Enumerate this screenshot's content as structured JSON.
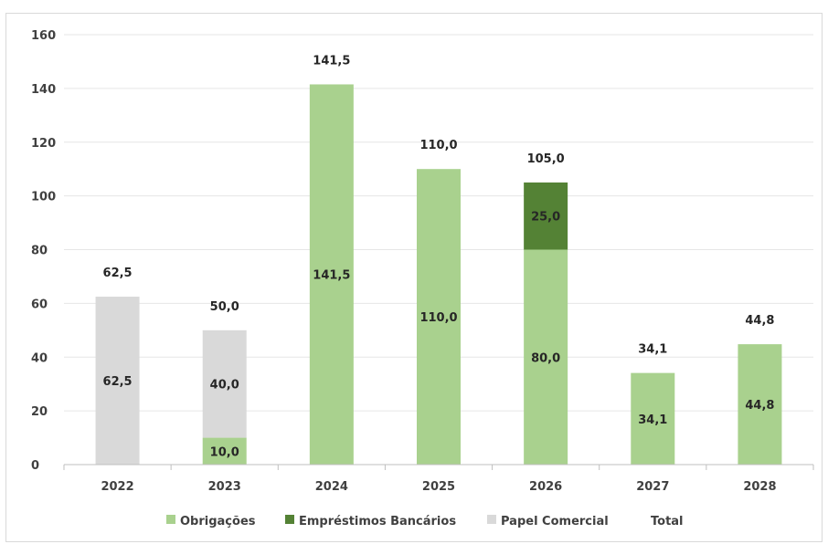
{
  "chart_data": {
    "type": "bar",
    "stacked": true,
    "categories": [
      "2022",
      "2023",
      "2024",
      "2025",
      "2026",
      "2027",
      "2028"
    ],
    "series": [
      {
        "name": "Obrigações",
        "color": "#a9d18e",
        "values": [
          0,
          10.0,
          141.5,
          110.0,
          80.0,
          34.1,
          44.8
        ],
        "labels": [
          null,
          "10,0",
          "141,5",
          "110,0",
          "80,0",
          "34,1",
          "44,8"
        ]
      },
      {
        "name": "Empréstimos Bancários",
        "color": "#548235",
        "values": [
          0,
          0,
          0,
          0,
          25.0,
          0,
          0
        ],
        "labels": [
          null,
          null,
          null,
          null,
          "25,0",
          null,
          null
        ]
      },
      {
        "name": "Papel Comercial",
        "color": "#d9d9d9",
        "values": [
          62.5,
          40.0,
          0,
          0,
          0,
          0,
          0
        ],
        "labels": [
          "62,5",
          "40,0",
          null,
          null,
          null,
          null,
          null
        ]
      }
    ],
    "total": {
      "name": "Total",
      "values": [
        62.5,
        50.0,
        141.5,
        110.0,
        105.0,
        34.1,
        44.8
      ],
      "labels": [
        "62,5",
        "50,0",
        "141,5",
        "110,0",
        "105,0",
        "34,1",
        "44,8"
      ]
    },
    "ylim": [
      0,
      160
    ],
    "yticks": [
      "0",
      "20",
      "40",
      "60",
      "80",
      "100",
      "120",
      "140",
      "160"
    ],
    "ytick_values": [
      0,
      20,
      40,
      60,
      80,
      100,
      120,
      140,
      160
    ],
    "grid": true,
    "legend_position": "bottom",
    "axis_color": "#bfbfbf",
    "grid_color": "#e6e6e6"
  }
}
